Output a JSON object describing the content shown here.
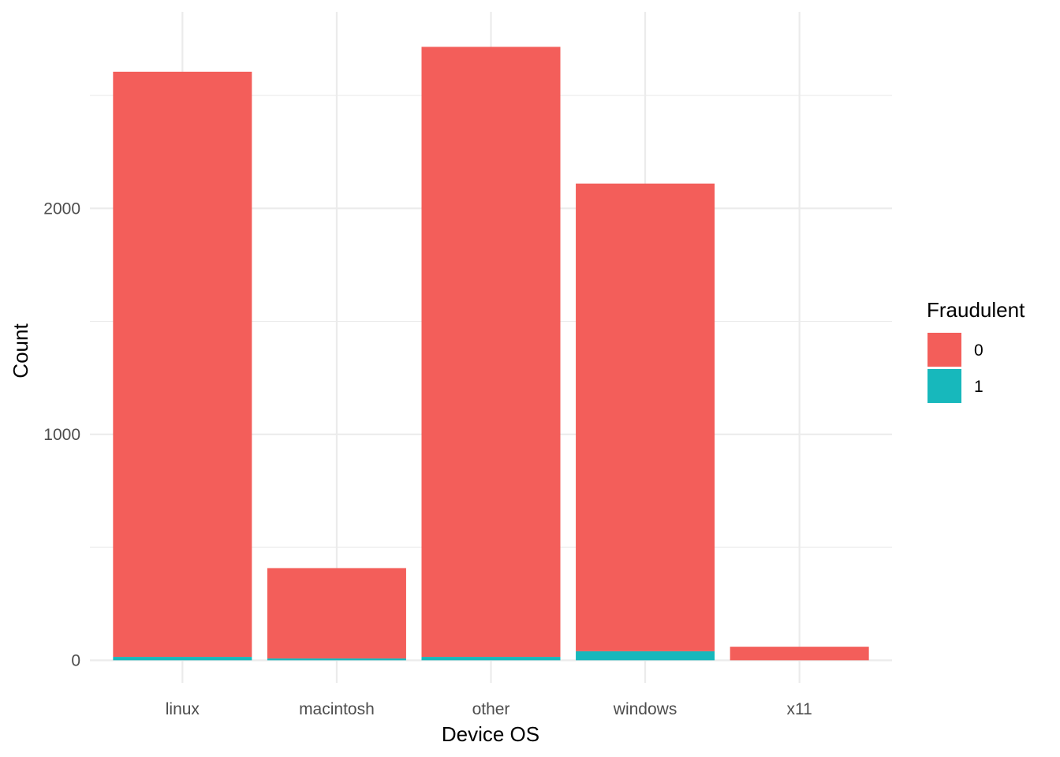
{
  "chart_data": {
    "type": "bar",
    "stacked": true,
    "categories": [
      "linux",
      "macintosh",
      "other",
      "windows",
      "x11"
    ],
    "series": [
      {
        "name": "0",
        "color": "#F35E5A",
        "values": [
          2590,
          400,
          2700,
          2070,
          60
        ]
      },
      {
        "name": "1",
        "color": "#17B8BC",
        "values": [
          15,
          8,
          15,
          40,
          0
        ]
      }
    ],
    "xlabel": "Device OS",
    "ylabel": "Count",
    "ylim": [
      -100,
      2870
    ],
    "yticks": [
      0,
      1000,
      2000
    ],
    "yminor": [
      500,
      1500,
      2500
    ],
    "grid": true,
    "legend": {
      "title": "Fraudulent",
      "placement": "right"
    }
  }
}
